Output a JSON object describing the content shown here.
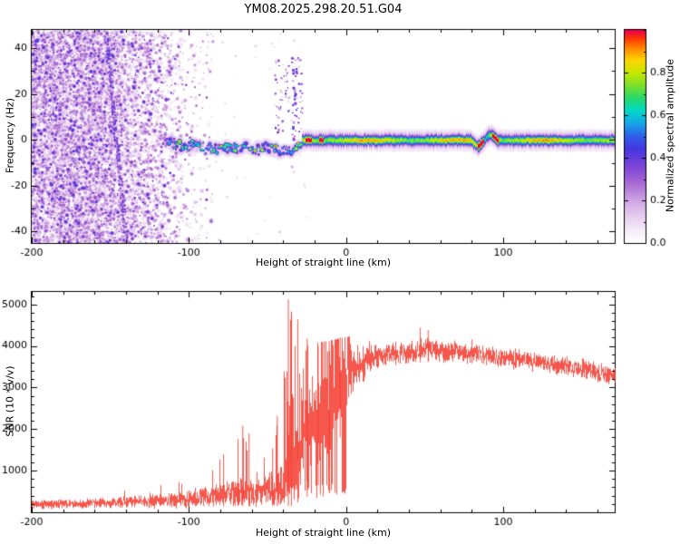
{
  "title": "YM08.2025.298.20.51.G04",
  "chart_data": [
    {
      "type": "heatmap",
      "title": "YM08.2025.298.20.51.G04",
      "xlabel": "Height of straight line (km)",
      "ylabel": "Frequency (Hz)",
      "xlim": [
        -200,
        171
      ],
      "ylim": [
        -45,
        48
      ],
      "xticks": [
        -200,
        -100,
        0,
        100
      ],
      "xminor_step": 20,
      "yticks": [
        -40,
        -20,
        0,
        20,
        40
      ],
      "yminor_step": 10,
      "colorbar": {
        "label": "Normalized spectral amplitude",
        "range": [
          0,
          1
        ],
        "ticks": [
          0,
          0.2,
          0.4,
          0.6,
          0.8
        ],
        "tick_labels": [
          "0.0",
          "0.2",
          "0.4",
          "0.6",
          "0.8"
        ],
        "minor_step": 0.1
      },
      "colormap_stops": [
        [
          0.0,
          "#ffffff"
        ],
        [
          0.05,
          "#f6eef9"
        ],
        [
          0.12,
          "#e7d0f0"
        ],
        [
          0.2,
          "#cda3e2"
        ],
        [
          0.28,
          "#a86ad2"
        ],
        [
          0.36,
          "#7b44d8"
        ],
        [
          0.44,
          "#4636e0"
        ],
        [
          0.5,
          "#2f5ee8"
        ],
        [
          0.56,
          "#18a4e8"
        ],
        [
          0.62,
          "#00d8c8"
        ],
        [
          0.68,
          "#28d86a"
        ],
        [
          0.74,
          "#7ce02c"
        ],
        [
          0.8,
          "#c6e800"
        ],
        [
          0.86,
          "#ffd400"
        ],
        [
          0.91,
          "#ff9000"
        ],
        [
          0.96,
          "#ff3800"
        ],
        [
          1.0,
          "#e8004c"
        ]
      ],
      "features": {
        "noise_speckle": {
          "x_range": [
            -200,
            -85
          ],
          "full_density_until": -160
        },
        "diagonal_streak": {
          "from": [
            -153,
            48
          ],
          "to": [
            -140,
            -45
          ]
        },
        "echo_band": {
          "center_hz": 0,
          "scattered_range": [
            -122,
            -28
          ],
          "narrow_range": [
            -28,
            171
          ],
          "red_patches": [
            [
              -26,
              -22
            ],
            [
              -17,
              -14
            ],
            [
              84,
              88
            ],
            [
              93,
              97
            ]
          ],
          "upper_scatter": {
            "x": [
              -46,
              -28
            ],
            "f": [
              3,
              36
            ]
          },
          "wiggle": {
            "x": [
              80,
              96
            ],
            "amp_hz": 2.3
          }
        }
      }
    },
    {
      "type": "line",
      "xlabel": "Height of straight line (km)",
      "ylabel": "SNR (10 * v/v)",
      "xlim": [
        -200,
        171
      ],
      "ylim": [
        0,
        5300
      ],
      "xticks": [
        -200,
        -100,
        0,
        100
      ],
      "xminor_step": 20,
      "yticks": [
        1000,
        2000,
        3000,
        4000,
        5000
      ],
      "yminor_step": 200,
      "series": [
        {
          "name": "SNR",
          "color": "#f5392e"
        }
      ],
      "envelope": [
        [
          -200,
          190,
          120,
          0.01,
          450
        ],
        [
          -170,
          210,
          130,
          0.01,
          500
        ],
        [
          -140,
          240,
          160,
          0.02,
          550
        ],
        [
          -115,
          280,
          200,
          0.03,
          700
        ],
        [
          -98,
          330,
          260,
          0.05,
          900
        ],
        [
          -84,
          400,
          320,
          0.08,
          1200
        ],
        [
          -72,
          470,
          380,
          0.12,
          1900
        ],
        [
          -64,
          520,
          420,
          0.15,
          2100
        ],
        [
          -57,
          450,
          360,
          0.08,
          1300
        ],
        [
          -50,
          520,
          430,
          0.1,
          1600
        ],
        [
          -44,
          650,
          520,
          0.15,
          2300
        ],
        [
          -40,
          850,
          750,
          0.22,
          3500
        ],
        [
          -37,
          1000,
          900,
          0.3,
          5120
        ],
        [
          -33,
          1300,
          1100,
          0.32,
          4650
        ],
        [
          -28,
          1600,
          1300,
          0.3,
          4300
        ],
        [
          -22,
          1900,
          1450,
          0.28,
          4050
        ],
        [
          -15,
          2300,
          1500,
          0.25,
          4100
        ],
        [
          -8,
          2700,
          1400,
          0.2,
          4150
        ],
        [
          -2,
          3100,
          1050,
          0.15,
          4200
        ],
        [
          5,
          3450,
          650,
          0.1,
          4250
        ],
        [
          15,
          3680,
          380,
          0.06,
          4300
        ],
        [
          30,
          3820,
          300,
          0.05,
          4380
        ],
        [
          50,
          3920,
          300,
          0.05,
          4450
        ],
        [
          70,
          3860,
          290,
          0.04,
          4300
        ],
        [
          90,
          3760,
          280,
          0.03,
          4200
        ],
        [
          110,
          3660,
          270,
          0.02,
          4100
        ],
        [
          130,
          3560,
          260,
          0.02,
          4000
        ],
        [
          150,
          3460,
          255,
          0.01,
          3900
        ],
        [
          171,
          3260,
          250,
          0.01,
          3700
        ]
      ],
      "forced_spikes": [
        [
          -37,
          5120
        ],
        [
          -35,
          4830
        ],
        [
          -31,
          4640
        ],
        [
          -69,
          1760
        ],
        [
          -66,
          2080
        ],
        [
          -62,
          1900
        ],
        [
          -47,
          1540
        ],
        [
          -44,
          2320
        ],
        [
          -25,
          4180
        ],
        [
          -18,
          3990
        ],
        [
          -11,
          4120
        ],
        [
          -4,
          4210
        ],
        [
          47,
          4440
        ],
        [
          52,
          4380
        ]
      ]
    }
  ]
}
